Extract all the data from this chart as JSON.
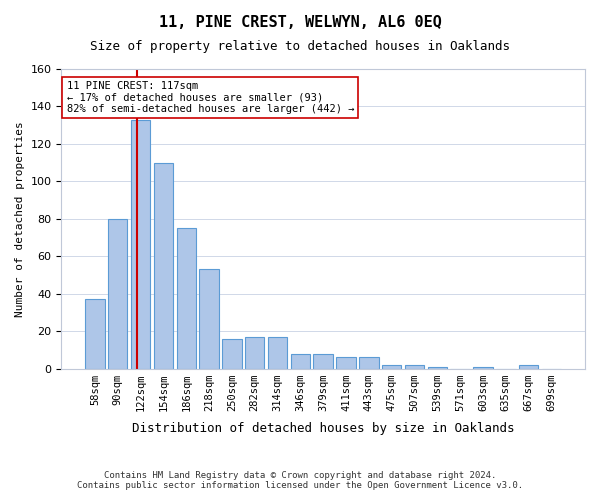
{
  "title": "11, PINE CREST, WELWYN, AL6 0EQ",
  "subtitle": "Size of property relative to detached houses in Oaklands",
  "xlabel": "Distribution of detached houses by size in Oaklands",
  "ylabel": "Number of detached properties",
  "footer_line1": "Contains HM Land Registry data © Crown copyright and database right 2024.",
  "footer_line2": "Contains public sector information licensed under the Open Government Licence v3.0.",
  "annotation_line1": "11 PINE CREST: 117sqm",
  "annotation_line2": "← 17% of detached houses are smaller (93)",
  "annotation_line3": "82% of semi-detached houses are larger (442) →",
  "bar_color": "#aec6e8",
  "bar_edge_color": "#5b9bd5",
  "vline_color": "#cc0000",
  "ylim": [
    0,
    160
  ],
  "yticks": [
    0,
    20,
    40,
    60,
    80,
    100,
    120,
    140,
    160
  ],
  "categories": [
    "58sqm",
    "90sqm",
    "122sqm",
    "154sqm",
    "186sqm",
    "218sqm",
    "250sqm",
    "282sqm",
    "314sqm",
    "346sqm",
    "379sqm",
    "411sqm",
    "443sqm",
    "475sqm",
    "507sqm",
    "539sqm",
    "571sqm",
    "603sqm",
    "635sqm",
    "667sqm",
    "699sqm"
  ],
  "values": [
    37,
    80,
    133,
    110,
    75,
    53,
    16,
    17,
    17,
    8,
    8,
    6,
    6,
    2,
    2,
    1,
    0,
    1,
    0,
    2,
    0
  ]
}
